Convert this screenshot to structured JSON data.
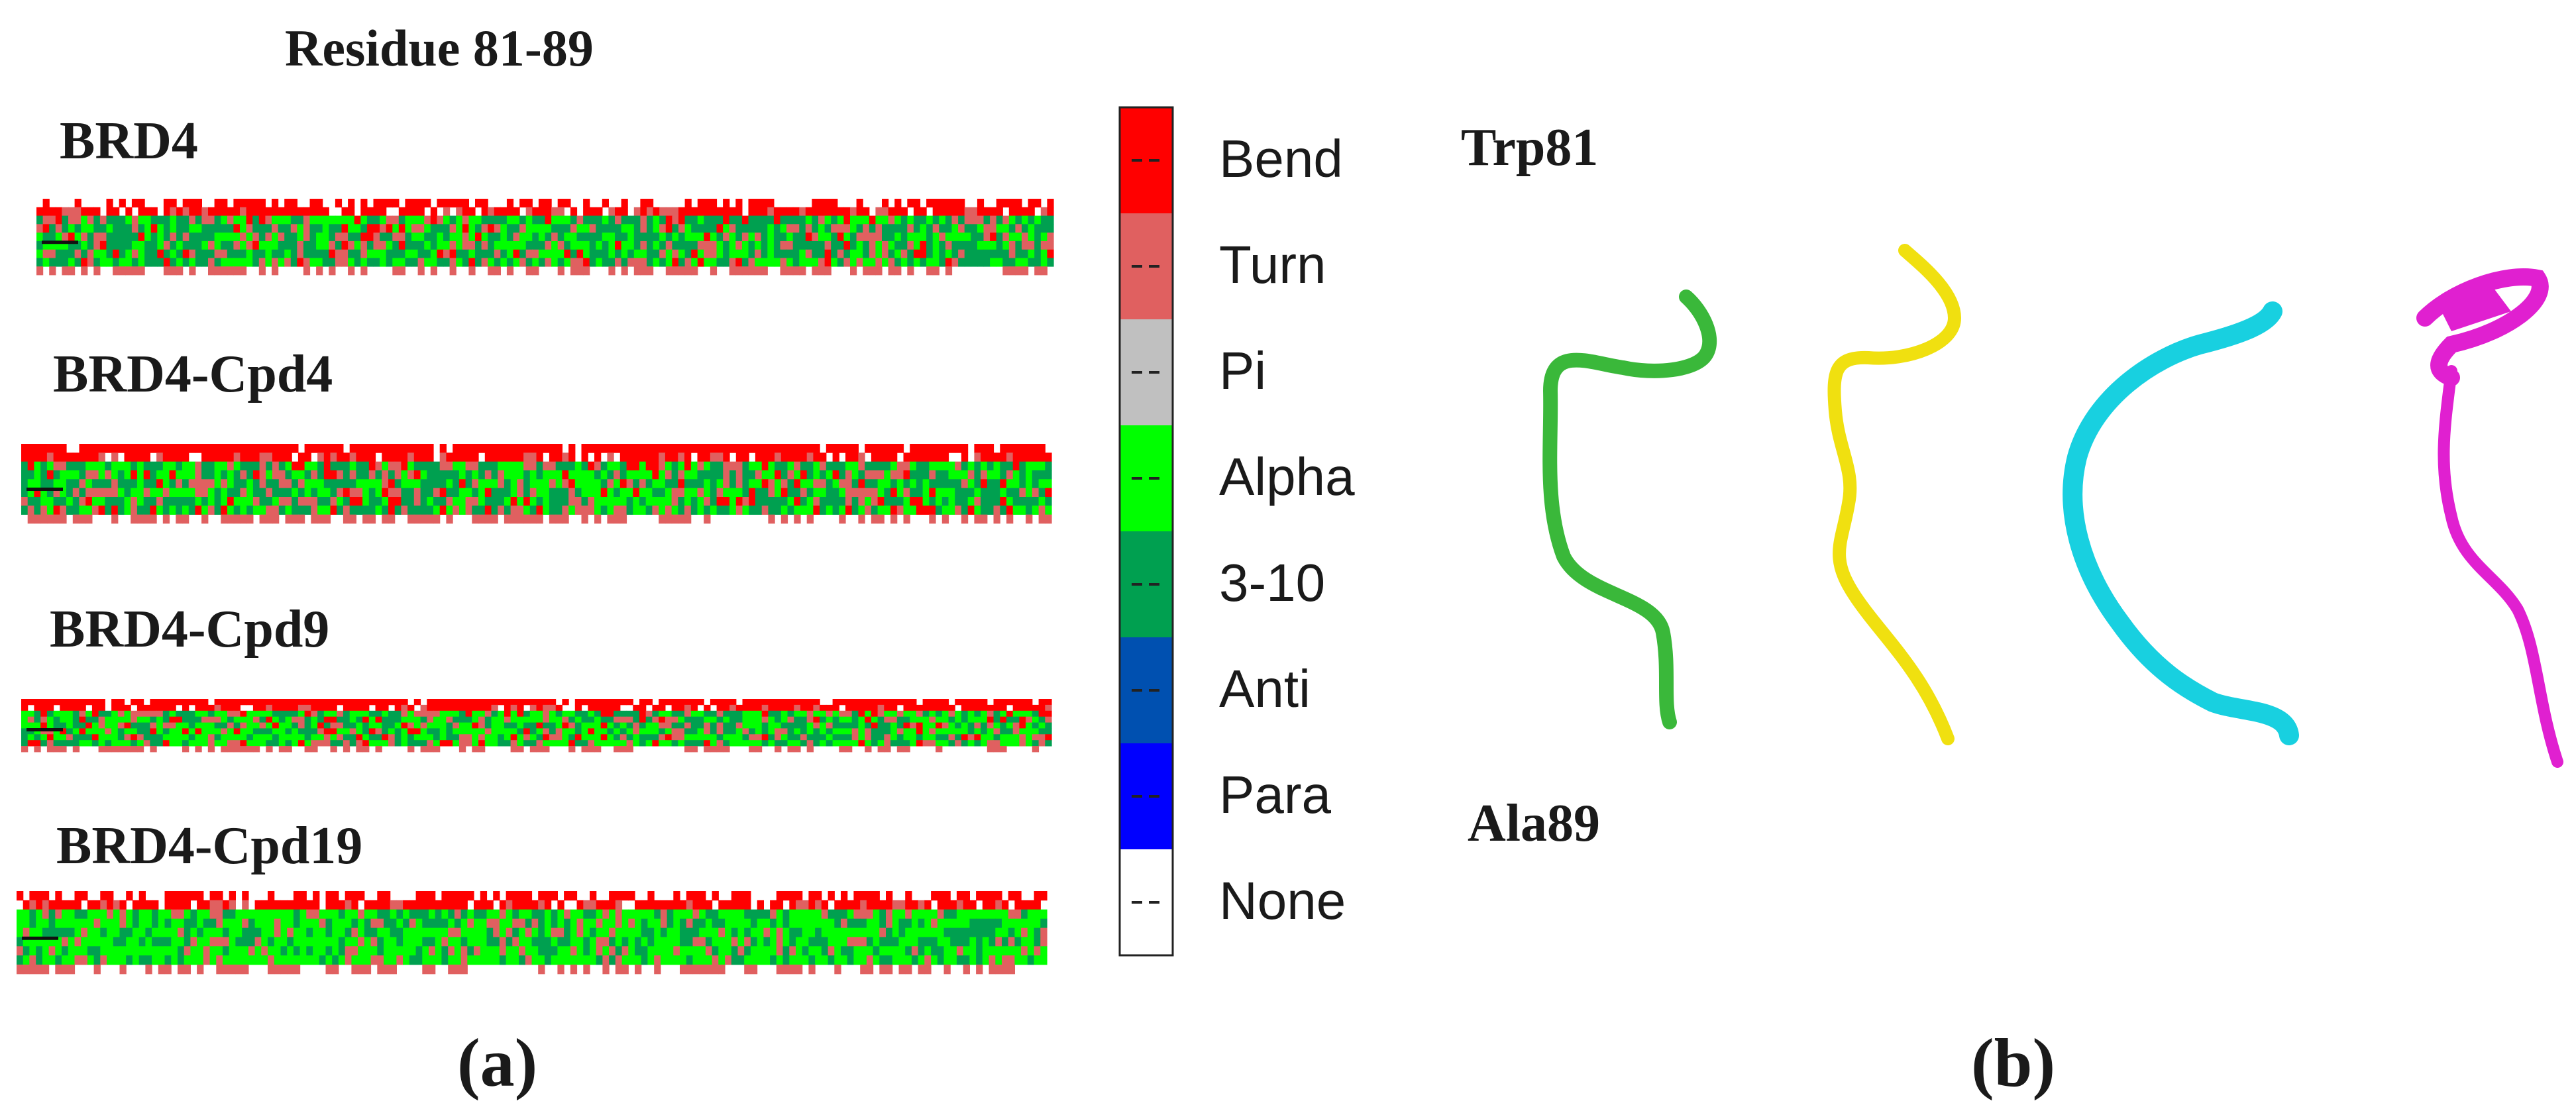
{
  "panel_a": {
    "title": "Residue 81-89",
    "letter": "(a)",
    "rows": [
      {
        "label": "BRD4"
      },
      {
        "label": "BRD4-Cpd4"
      },
      {
        "label": "BRD4-Cpd9"
      },
      {
        "label": "BRD4-Cpd19"
      }
    ]
  },
  "legend": {
    "entries": [
      {
        "label": "Bend",
        "color": "#ff0000"
      },
      {
        "label": "Turn",
        "color": "#e06060"
      },
      {
        "label": "Pi",
        "color": "#c0c0c0"
      },
      {
        "label": "Alpha",
        "color": "#00ff00"
      },
      {
        "label": "3-10",
        "color": "#00a050"
      },
      {
        "label": "Anti",
        "color": "#0050b0"
      },
      {
        "label": "Para",
        "color": "#0000ff"
      },
      {
        "label": "None",
        "color": "#ffffff"
      }
    ]
  },
  "panel_b": {
    "letter": "(b)",
    "start_label": "Trp81",
    "end_label": "Ala89",
    "structures": [
      {
        "color": "#3ab83a",
        "form": "coil"
      },
      {
        "color": "#f0e010",
        "form": "coil"
      },
      {
        "color": "#18d0e0",
        "form": "coil"
      },
      {
        "color": "#e020d0",
        "form": "helix"
      }
    ]
  }
}
